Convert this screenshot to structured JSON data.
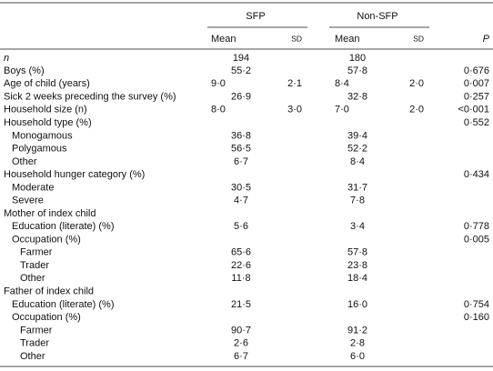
{
  "table": {
    "groups": [
      "SFP",
      "Non-SFP"
    ],
    "columns": {
      "label": "n",
      "mean1": "Mean",
      "sd1": "sd",
      "mean2": "Mean",
      "sd2": "sd",
      "p": "P"
    },
    "rows": [
      {
        "label": "Boys (%)",
        "indent": 0,
        "sfp": {
          "mean": "55·2"
        },
        "non": {
          "mean": "57·8"
        },
        "p": "0·676"
      },
      {
        "label": "Age of child (years)",
        "indent": 0,
        "sfp": {
          "mean": "9·0",
          "sd": "2·1"
        },
        "non": {
          "mean": "8·4",
          "sd": "2·0"
        },
        "p": "0·007"
      },
      {
        "label": "Sick 2 weeks preceding the survey (%)",
        "indent": 0,
        "sfp": {
          "mean": "26·9"
        },
        "non": {
          "mean": "32·8"
        },
        "p": "0·257"
      },
      {
        "label": "Household size (n)",
        "indent": 0,
        "sfp": {
          "mean": "8·0",
          "sd": "3·0"
        },
        "non": {
          "mean": "7·0",
          "sd": "2·0"
        },
        "p": "<0·001"
      },
      {
        "label": "Household type (%)",
        "indent": 0,
        "p": "0·552"
      },
      {
        "label": "Monogamous",
        "indent": 1,
        "sfp": {
          "mean": "36·8"
        },
        "non": {
          "mean": "39·4"
        }
      },
      {
        "label": "Polygamous",
        "indent": 1,
        "sfp": {
          "mean": "56·5"
        },
        "non": {
          "mean": "52·2"
        }
      },
      {
        "label": "Other",
        "indent": 1,
        "sfp": {
          "mean": "6·7"
        },
        "non": {
          "mean": "8·4"
        }
      },
      {
        "label": "Household hunger category (%)",
        "indent": 0,
        "p": "0·434"
      },
      {
        "label": "Moderate",
        "indent": 1,
        "sfp": {
          "mean": "30·5"
        },
        "non": {
          "mean": "31·7"
        }
      },
      {
        "label": "Severe",
        "indent": 1,
        "sfp": {
          "mean": "4·7"
        },
        "non": {
          "mean": "7·8"
        }
      },
      {
        "label": "Mother of index child",
        "indent": 0
      },
      {
        "label": "Education (literate) (%)",
        "indent": 1,
        "sfp": {
          "mean": "5·6"
        },
        "non": {
          "mean": "3·4"
        },
        "p": "0·778"
      },
      {
        "label": "Occupation (%)",
        "indent": 1,
        "p": "0·005"
      },
      {
        "label": "Farmer",
        "indent": 2,
        "sfp": {
          "mean": "65·6"
        },
        "non": {
          "mean": "57·8"
        }
      },
      {
        "label": "Trader",
        "indent": 2,
        "sfp": {
          "mean": "22·6"
        },
        "non": {
          "mean": "23·8"
        }
      },
      {
        "label": "Other",
        "indent": 2,
        "sfp": {
          "mean": "11·8"
        },
        "non": {
          "mean": "18·4"
        }
      },
      {
        "label": "Father of index child",
        "indent": 0
      },
      {
        "label": "Education (literate) (%)",
        "indent": 1,
        "sfp": {
          "mean": "21·5"
        },
        "non": {
          "mean": "16·0"
        },
        "p": "0·754"
      },
      {
        "label": "Occupation (%)",
        "indent": 1,
        "p": "0·160"
      },
      {
        "label": "Farmer",
        "indent": 2,
        "sfp": {
          "mean": "90·7"
        },
        "non": {
          "mean": "91·2"
        }
      },
      {
        "label": "Trader",
        "indent": 2,
        "sfp": {
          "mean": "2·6"
        },
        "non": {
          "mean": "2·8"
        }
      },
      {
        "label": "Other",
        "indent": 2,
        "sfp": {
          "mean": "6·7"
        },
        "non": {
          "mean": "6·0"
        }
      }
    ],
    "n_row": {
      "sfp": "194",
      "non": "180"
    }
  }
}
